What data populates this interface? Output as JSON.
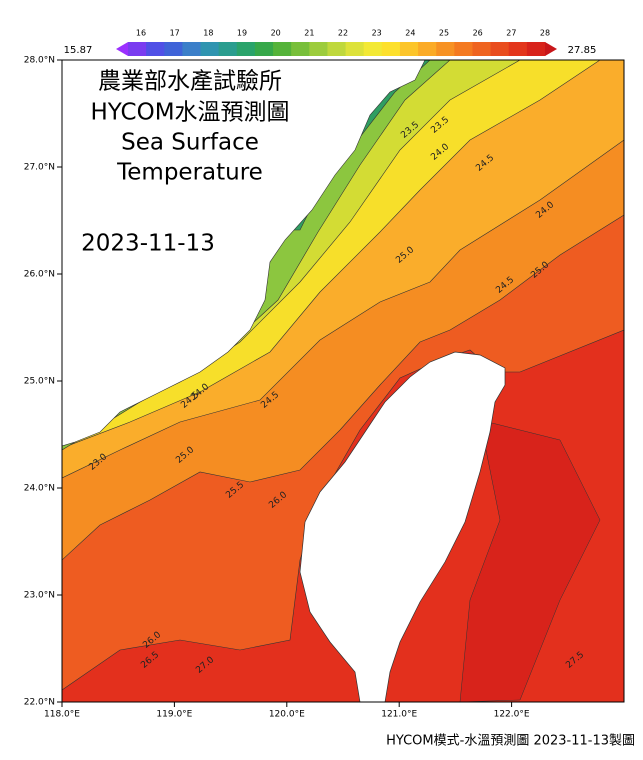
{
  "colorbar": {
    "min_label": "15.87",
    "max_label": "27.85",
    "ticks": [
      16,
      17,
      18,
      19,
      20,
      21,
      22,
      23,
      24,
      25,
      26,
      27,
      28
    ],
    "colors": [
      "#9b30ff",
      "#7a3cf0",
      "#5050e6",
      "#3f63d8",
      "#3b7fc9",
      "#2f94b0",
      "#2a9d8f",
      "#2aa36b",
      "#37a84a",
      "#55b33a",
      "#78bf3a",
      "#9ccc3c",
      "#bfd83c",
      "#dde23a",
      "#f3e935",
      "#fde02c",
      "#fcc52a",
      "#fbab27",
      "#f79224",
      "#f47a21",
      "#ef6420",
      "#e94d1e",
      "#e3361c",
      "#d8231b",
      "#c8161a"
    ]
  },
  "map": {
    "title_lines": [
      "農業部水產試驗所",
      "HYCOM水溫預測圖",
      "Sea Surface",
      "Temperature"
    ],
    "date": "2023-11-13",
    "lat_labels": [
      "28.0°N",
      "27.0°N",
      "26.0°N",
      "25.0°N",
      "24.0°N",
      "23.0°N",
      "22.0°N"
    ],
    "lon_labels": [
      "118.0°E",
      "119.0°E",
      "120.0°E",
      "121.0°E",
      "122.0°E"
    ],
    "contour_labels": [
      "23.5",
      "23.5",
      "24.0",
      "24.5",
      "25.0",
      "24.0",
      "24.5",
      "25.0",
      "23.0",
      "24.5",
      "24.0",
      "24.5",
      "25.0",
      "25.5",
      "26.0",
      "26.5",
      "26.0",
      "27.0",
      "27.5"
    ]
  },
  "footer": "HYCOM模式-水溫預測圖 2023-11-13製圖"
}
